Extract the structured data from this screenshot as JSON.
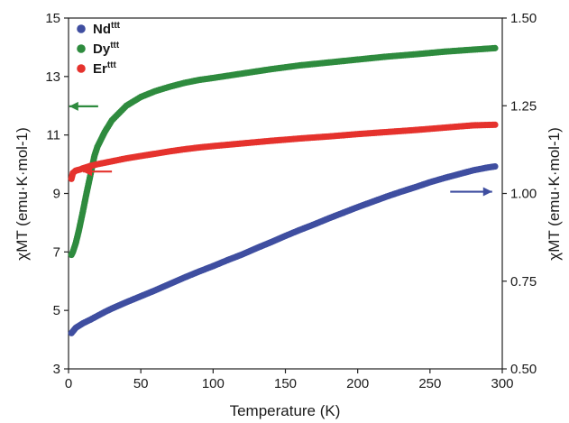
{
  "chart_data": {
    "type": "scatter",
    "xlabel": "Temperature (K)",
    "ylabel_left": "χMT (emu·K·mol-1)",
    "ylabel_right": "χMT (emu·K·mol-1)",
    "xlim": [
      0,
      300
    ],
    "ylim_left": [
      3,
      15
    ],
    "ylim_right": [
      0.5,
      1.5
    ],
    "x_ticks": [
      0,
      50,
      100,
      150,
      200,
      250,
      300
    ],
    "y_ticks_left": [
      3,
      5,
      7,
      9,
      11,
      13,
      15
    ],
    "y_ticks_right": [
      "0.50",
      "0.75",
      "1.00",
      "1.25",
      "1.50"
    ],
    "legend_position": "top-left",
    "grid": false,
    "series": [
      {
        "name": "Nd",
        "superscript": "ttt",
        "color": "#3f4ea0",
        "axis": "right",
        "arrow": "right",
        "points": [
          [
            2,
            0.602
          ],
          [
            5,
            0.617
          ],
          [
            10,
            0.63
          ],
          [
            15,
            0.64
          ],
          [
            20,
            0.651
          ],
          [
            25,
            0.662
          ],
          [
            30,
            0.672
          ],
          [
            40,
            0.69
          ],
          [
            50,
            0.707
          ],
          [
            60,
            0.724
          ],
          [
            70,
            0.742
          ],
          [
            80,
            0.76
          ],
          [
            90,
            0.777
          ],
          [
            100,
            0.793
          ],
          [
            110,
            0.81
          ],
          [
            120,
            0.826
          ],
          [
            130,
            0.844
          ],
          [
            140,
            0.861
          ],
          [
            150,
            0.879
          ],
          [
            160,
            0.896
          ],
          [
            170,
            0.912
          ],
          [
            180,
            0.929
          ],
          [
            190,
            0.945
          ],
          [
            200,
            0.961
          ],
          [
            210,
            0.976
          ],
          [
            220,
            0.991
          ],
          [
            230,
            1.005
          ],
          [
            240,
            1.018
          ],
          [
            250,
            1.032
          ],
          [
            260,
            1.044
          ],
          [
            270,
            1.055
          ],
          [
            280,
            1.066
          ],
          [
            290,
            1.074
          ],
          [
            295,
            1.077
          ]
        ]
      },
      {
        "name": "Dy",
        "superscript": "ttt",
        "color": "#2e8b3e",
        "axis": "left",
        "arrow": "left",
        "points": [
          [
            2,
            6.9
          ],
          [
            3,
            7.0
          ],
          [
            5,
            7.3
          ],
          [
            7,
            7.7
          ],
          [
            10,
            8.4
          ],
          [
            12,
            8.9
          ],
          [
            15,
            9.6
          ],
          [
            18,
            10.3
          ],
          [
            20,
            10.6
          ],
          [
            25,
            11.1
          ],
          [
            30,
            11.5
          ],
          [
            40,
            12.0
          ],
          [
            50,
            12.3
          ],
          [
            60,
            12.5
          ],
          [
            70,
            12.65
          ],
          [
            80,
            12.78
          ],
          [
            90,
            12.88
          ],
          [
            100,
            12.95
          ],
          [
            120,
            13.1
          ],
          [
            140,
            13.25
          ],
          [
            160,
            13.38
          ],
          [
            180,
            13.48
          ],
          [
            200,
            13.58
          ],
          [
            220,
            13.68
          ],
          [
            240,
            13.76
          ],
          [
            260,
            13.85
          ],
          [
            280,
            13.92
          ],
          [
            295,
            13.97
          ]
        ]
      },
      {
        "name": "Er",
        "superscript": "ttt",
        "color": "#e5322d",
        "axis": "left",
        "arrow": "left",
        "points": [
          [
            2,
            9.5
          ],
          [
            3,
            9.7
          ],
          [
            5,
            9.78
          ],
          [
            8,
            9.82
          ],
          [
            10,
            9.86
          ],
          [
            15,
            9.94
          ],
          [
            20,
            10.0
          ],
          [
            30,
            10.1
          ],
          [
            40,
            10.2
          ],
          [
            50,
            10.28
          ],
          [
            60,
            10.36
          ],
          [
            70,
            10.44
          ],
          [
            80,
            10.51
          ],
          [
            90,
            10.57
          ],
          [
            100,
            10.62
          ],
          [
            120,
            10.71
          ],
          [
            140,
            10.8
          ],
          [
            160,
            10.88
          ],
          [
            180,
            10.95
          ],
          [
            200,
            11.03
          ],
          [
            220,
            11.1
          ],
          [
            240,
            11.17
          ],
          [
            260,
            11.25
          ],
          [
            280,
            11.33
          ],
          [
            295,
            11.35
          ]
        ]
      }
    ]
  }
}
